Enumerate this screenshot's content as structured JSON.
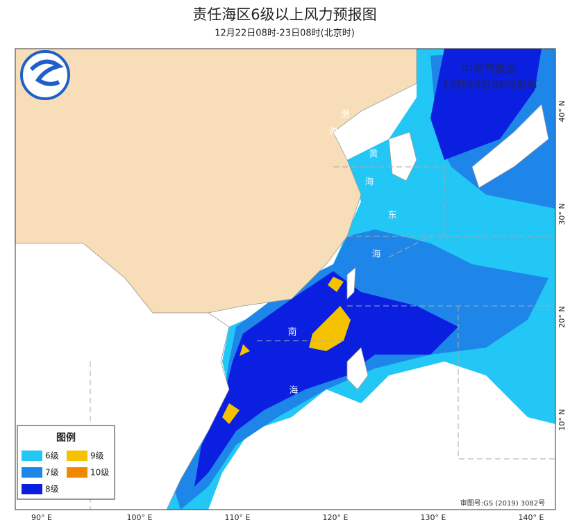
{
  "title": "责任海区6级以上风力预报图",
  "subtitle": "12月22日08时-23日08时(北京时)",
  "issuer": "中央气象台",
  "issued": "12月20日06时发布",
  "legend": {
    "title": "图例",
    "items": [
      {
        "label": "6级",
        "color": "#22c7f5"
      },
      {
        "label": "7级",
        "color": "#1e86e8"
      },
      {
        "label": "8级",
        "color": "#0b1fe0"
      },
      {
        "label": "9级",
        "color": "#f5c200"
      },
      {
        "label": "10级",
        "color": "#f08800"
      }
    ]
  },
  "longitudes": [
    "90° E",
    "100° E",
    "110° E",
    "120° E",
    "130° E",
    "140° E"
  ],
  "latitudes": [
    "40° N",
    "30° N",
    "20° N",
    "10° N"
  ],
  "sea_labels": [
    "渤",
    "海",
    "黄",
    "海",
    "东",
    "海",
    "南",
    "海"
  ],
  "approval": "审图号:GS (2019) 3082号"
}
